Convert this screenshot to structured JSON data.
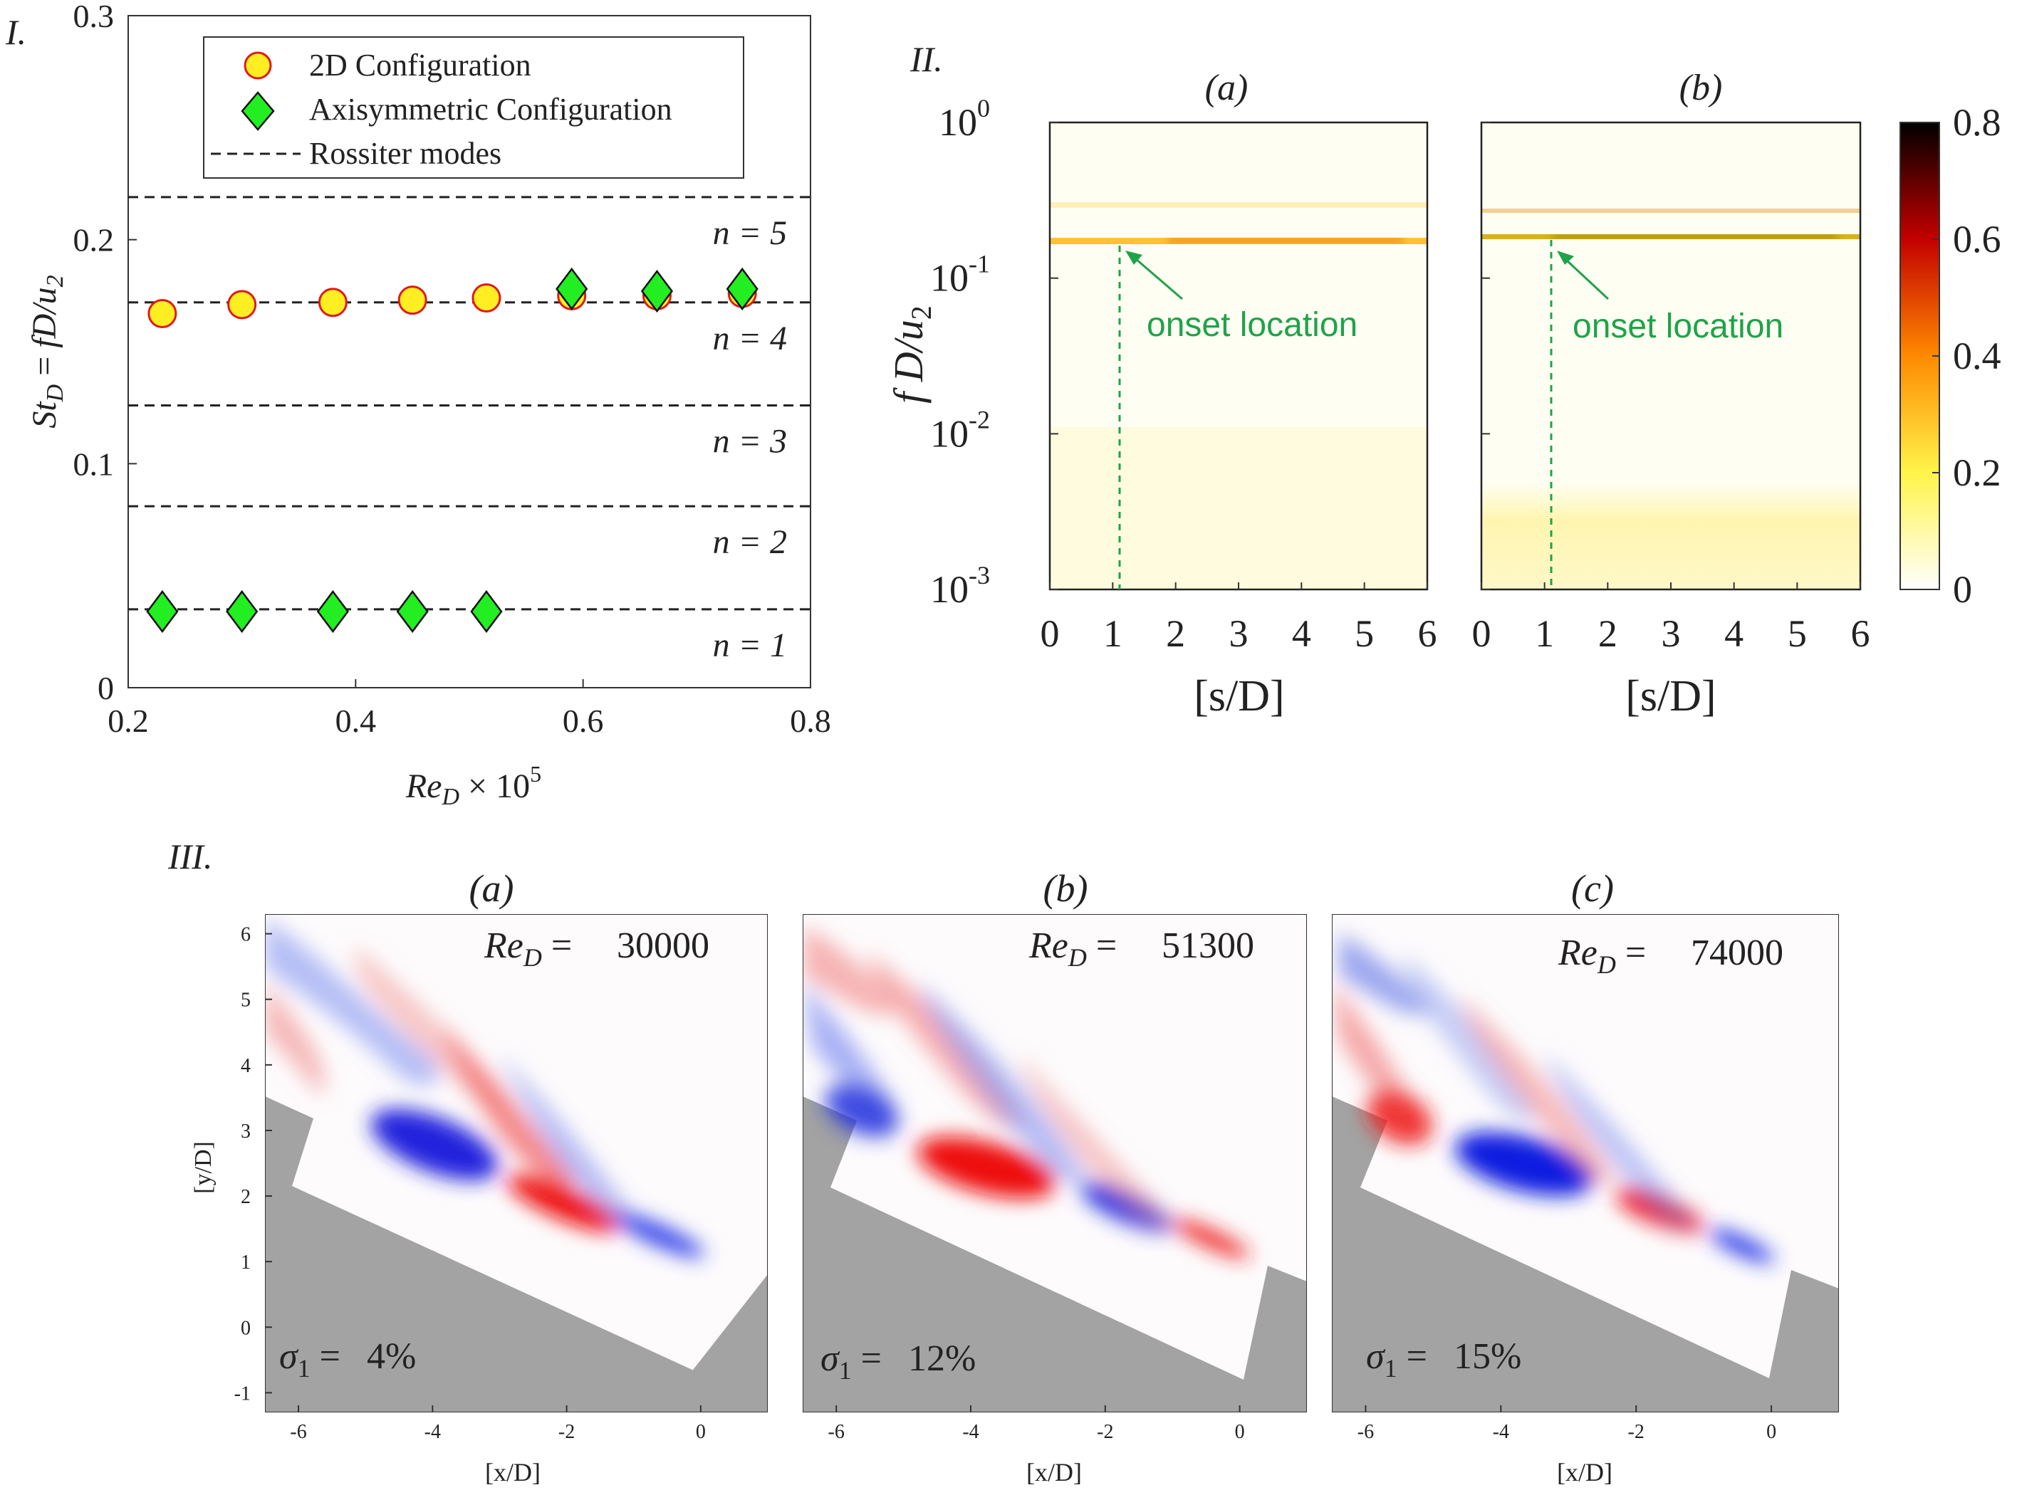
{
  "chart_data": [
    {
      "panel_label": "I.",
      "type": "scatter",
      "xlabel": "Re_D × 10^5",
      "ylabel": "St_D = fD/u_2",
      "xlim": [
        0.2,
        0.8
      ],
      "ylim": [
        0,
        0.3
      ],
      "xticks": [
        "0.2",
        "0.4",
        "0.6",
        "0.8"
      ],
      "yticks": [
        "0",
        "0.1",
        "0.2",
        "0.3"
      ],
      "grid": false,
      "legend_position": "top-right",
      "series": [
        {
          "name": "2D Configuration",
          "marker": "circle",
          "color": "#ffee22",
          "edge": "#e01a1a",
          "x": [
            0.23,
            0.3,
            0.38,
            0.45,
            0.515,
            0.59,
            0.665,
            0.74
          ],
          "y": [
            0.167,
            0.171,
            0.172,
            0.173,
            0.174,
            0.175,
            0.175,
            0.176
          ]
        },
        {
          "name": "Axisymmetric Configuration",
          "marker": "diamond",
          "color": "#22ee22",
          "edge": "#111111",
          "x": [
            0.23,
            0.3,
            0.38,
            0.45,
            0.515,
            0.59,
            0.665,
            0.74
          ],
          "y": [
            0.034,
            0.034,
            0.034,
            0.034,
            0.034,
            0.178,
            0.177,
            0.178
          ]
        }
      ],
      "rossiter_label": "Rossiter modes",
      "rossiter_modes": [
        {
          "label": "n = 1",
          "value": 0.035
        },
        {
          "label": "n = 2",
          "value": 0.081
        },
        {
          "label": "n = 3",
          "value": 0.126
        },
        {
          "label": "n = 4",
          "value": 0.172
        },
        {
          "label": "n = 5",
          "value": 0.219
        }
      ]
    },
    {
      "panel_label": "II.",
      "type": "heatmap",
      "ylabel": "fD/u_2",
      "xlabel": "[s/D]",
      "yscale": "log",
      "ylim": [
        0.001,
        1
      ],
      "xlim": [
        0,
        6
      ],
      "xticks": [
        "0",
        "1",
        "2",
        "3",
        "4",
        "5",
        "6"
      ],
      "yticks": [
        "10^0",
        "10^-1",
        "10^-2",
        "10^-3"
      ],
      "colorbar": {
        "min": 0,
        "max": 0.8,
        "ticks": [
          "0",
          "0.2",
          "0.4",
          "0.6",
          "0.8"
        ]
      },
      "subplots": [
        {
          "label": "(a)",
          "peak_freq": 0.17,
          "secondary_freq": 0.28,
          "onset_s": 1.1,
          "annotation": "onset location"
        },
        {
          "label": "(b)",
          "peak_freq": 0.18,
          "secondary_freq": 0.27,
          "onset_s": 1.1,
          "annotation": "onset location"
        }
      ]
    },
    {
      "panel_label": "III.",
      "type": "heatmap",
      "xlabel": "[x/D]",
      "ylabel": "[y/D]",
      "xlim": [
        -6.5,
        1
      ],
      "ylim": [
        -1.3,
        6.3
      ],
      "xticks": [
        "-6",
        "-4",
        "-2",
        "0"
      ],
      "yticks": [
        "-1",
        "0",
        "1",
        "2",
        "3",
        "4",
        "5",
        "6"
      ],
      "subplots": [
        {
          "label": "(a)",
          "re": "30000",
          "sigma": "4%"
        },
        {
          "label": "(b)",
          "re": "51300",
          "sigma": "12%"
        },
        {
          "label": "(c)",
          "re": "74000",
          "sigma": "15%"
        }
      ]
    }
  ]
}
